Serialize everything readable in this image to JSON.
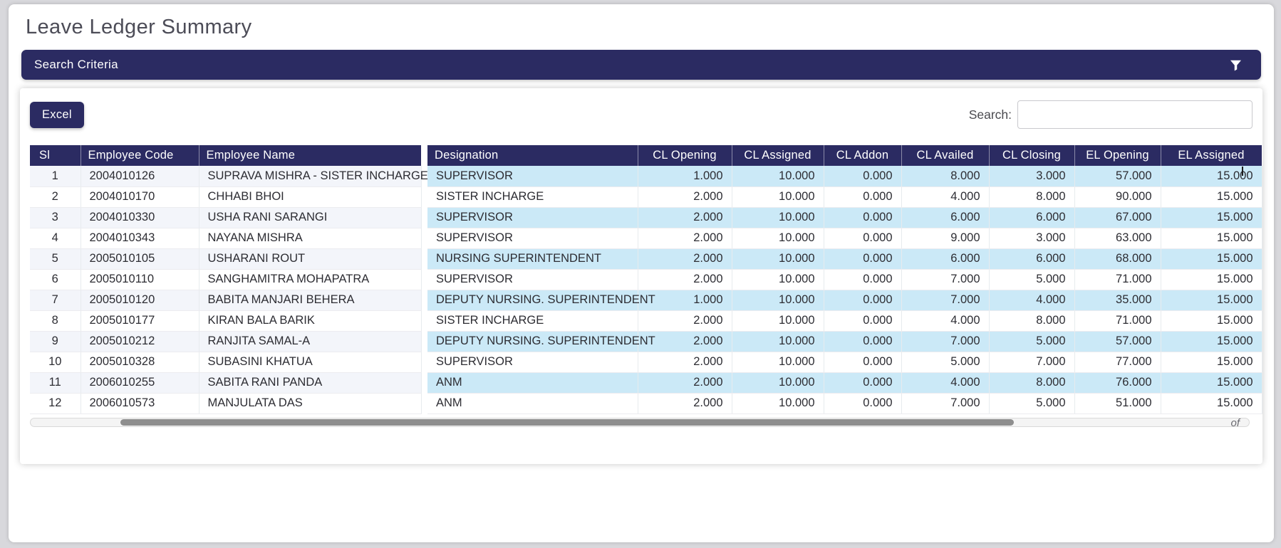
{
  "page": {
    "title": "Leave Ledger Summary"
  },
  "search_criteria": {
    "label": "Search Criteria",
    "filter_icon": "funnel-icon"
  },
  "toolbar": {
    "excel_button": "Excel",
    "search_label": "Search:",
    "search_value": ""
  },
  "table": {
    "headers": [
      "Sl",
      "Employee Code",
      "Employee Name",
      "Designation",
      "CL Opening",
      "CL Assigned",
      "CL Addon",
      "CL Availed",
      "CL Closing",
      "EL Opening",
      "EL Assigned"
    ],
    "rows": [
      {
        "sl": "1",
        "employee_code": "2004010126",
        "employee_name": "SUPRAVA MISHRA - SISTER INCHARGE",
        "designation": "SUPERVISOR",
        "cl_opening": "1.000",
        "cl_assigned": "10.000",
        "cl_addon": "0.000",
        "cl_availed": "8.000",
        "cl_closing": "3.000",
        "el_opening": "57.000",
        "el_assigned": "15.000"
      },
      {
        "sl": "2",
        "employee_code": "2004010170",
        "employee_name": "CHHABI BHOI",
        "designation": "SISTER INCHARGE",
        "cl_opening": "2.000",
        "cl_assigned": "10.000",
        "cl_addon": "0.000",
        "cl_availed": "4.000",
        "cl_closing": "8.000",
        "el_opening": "90.000",
        "el_assigned": "15.000"
      },
      {
        "sl": "3",
        "employee_code": "2004010330",
        "employee_name": "USHA RANI SARANGI",
        "designation": "SUPERVISOR",
        "cl_opening": "2.000",
        "cl_assigned": "10.000",
        "cl_addon": "0.000",
        "cl_availed": "6.000",
        "cl_closing": "6.000",
        "el_opening": "67.000",
        "el_assigned": "15.000"
      },
      {
        "sl": "4",
        "employee_code": "2004010343",
        "employee_name": "NAYANA MISHRA",
        "designation": "SUPERVISOR",
        "cl_opening": "2.000",
        "cl_assigned": "10.000",
        "cl_addon": "0.000",
        "cl_availed": "9.000",
        "cl_closing": "3.000",
        "el_opening": "63.000",
        "el_assigned": "15.000"
      },
      {
        "sl": "5",
        "employee_code": "2005010105",
        "employee_name": "USHARANI ROUT",
        "designation": "NURSING SUPERINTENDENT",
        "cl_opening": "2.000",
        "cl_assigned": "10.000",
        "cl_addon": "0.000",
        "cl_availed": "6.000",
        "cl_closing": "6.000",
        "el_opening": "68.000",
        "el_assigned": "15.000"
      },
      {
        "sl": "6",
        "employee_code": "2005010110",
        "employee_name": "SANGHAMITRA MOHAPATRA",
        "designation": "SUPERVISOR",
        "cl_opening": "2.000",
        "cl_assigned": "10.000",
        "cl_addon": "0.000",
        "cl_availed": "7.000",
        "cl_closing": "5.000",
        "el_opening": "71.000",
        "el_assigned": "15.000"
      },
      {
        "sl": "7",
        "employee_code": "2005010120",
        "employee_name": "BABITA MANJARI BEHERA",
        "designation": "DEPUTY NURSING. SUPERINTENDENT",
        "cl_opening": "1.000",
        "cl_assigned": "10.000",
        "cl_addon": "0.000",
        "cl_availed": "7.000",
        "cl_closing": "4.000",
        "el_opening": "35.000",
        "el_assigned": "15.000"
      },
      {
        "sl": "8",
        "employee_code": "2005010177",
        "employee_name": "KIRAN BALA BARIK",
        "designation": "SISTER INCHARGE",
        "cl_opening": "2.000",
        "cl_assigned": "10.000",
        "cl_addon": "0.000",
        "cl_availed": "4.000",
        "cl_closing": "8.000",
        "el_opening": "71.000",
        "el_assigned": "15.000"
      },
      {
        "sl": "9",
        "employee_code": "2005010212",
        "employee_name": "RANJITA SAMAL-A",
        "designation": "DEPUTY NURSING. SUPERINTENDENT",
        "cl_opening": "2.000",
        "cl_assigned": "10.000",
        "cl_addon": "0.000",
        "cl_availed": "7.000",
        "cl_closing": "5.000",
        "el_opening": "57.000",
        "el_assigned": "15.000"
      },
      {
        "sl": "10",
        "employee_code": "2005010328",
        "employee_name": "SUBASINI KHATUA",
        "designation": "SUPERVISOR",
        "cl_opening": "2.000",
        "cl_assigned": "10.000",
        "cl_addon": "0.000",
        "cl_availed": "5.000",
        "cl_closing": "7.000",
        "el_opening": "77.000",
        "el_assigned": "15.000"
      },
      {
        "sl": "11",
        "employee_code": "2006010255",
        "employee_name": "SABITA RANI PANDA",
        "designation": "ANM",
        "cl_opening": "2.000",
        "cl_assigned": "10.000",
        "cl_addon": "0.000",
        "cl_availed": "4.000",
        "cl_closing": "8.000",
        "el_opening": "76.000",
        "el_assigned": "15.000"
      },
      {
        "sl": "12",
        "employee_code": "2006010573",
        "employee_name": "MANJULATA DAS",
        "designation": "ANM",
        "cl_opening": "2.000",
        "cl_assigned": "10.000",
        "cl_addon": "0.000",
        "cl_availed": "7.000",
        "cl_closing": "5.000",
        "el_opening": "51.000",
        "el_assigned": "15.000"
      }
    ]
  },
  "scroll": {
    "clipped_fragment": "of"
  },
  "colors": {
    "navy": "#2b2b62",
    "stripe_blue": "#cbe9f7",
    "stripe_pale": "#f3f5fa",
    "page_bg": "#d8d8dc"
  }
}
